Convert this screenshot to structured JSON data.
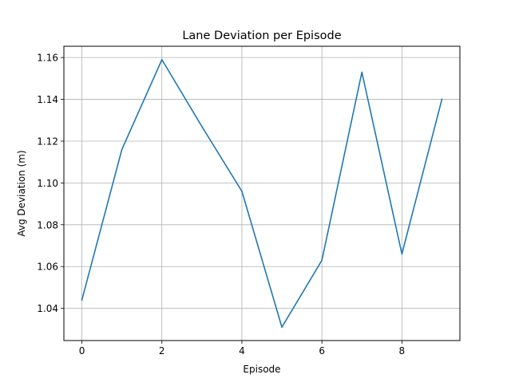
{
  "chart_data": {
    "type": "line",
    "title": "Lane Deviation per Episode",
    "xlabel": "Episode",
    "ylabel": "Avg Deviation (m)",
    "x": [
      0,
      1,
      2,
      3,
      4,
      5,
      6,
      7,
      8,
      9
    ],
    "series": [
      {
        "values": [
          1.044,
          1.116,
          1.159,
          1.127,
          1.096,
          1.031,
          1.063,
          1.153,
          1.066,
          1.14
        ],
        "color": "#1f77b4"
      }
    ],
    "xlim": [
      -0.45,
      9.45
    ],
    "ylim": [
      1.0246,
      1.1654
    ],
    "xticks": [
      0,
      2,
      4,
      6,
      8
    ],
    "xtick_labels": [
      "0",
      "2",
      "4",
      "6",
      "8"
    ],
    "yticks": [
      1.04,
      1.06,
      1.08,
      1.1,
      1.12,
      1.14,
      1.16
    ],
    "ytick_labels": [
      "1.04",
      "1.06",
      "1.08",
      "1.10",
      "1.12",
      "1.14",
      "1.16"
    ],
    "grid": true,
    "legend": "none"
  }
}
